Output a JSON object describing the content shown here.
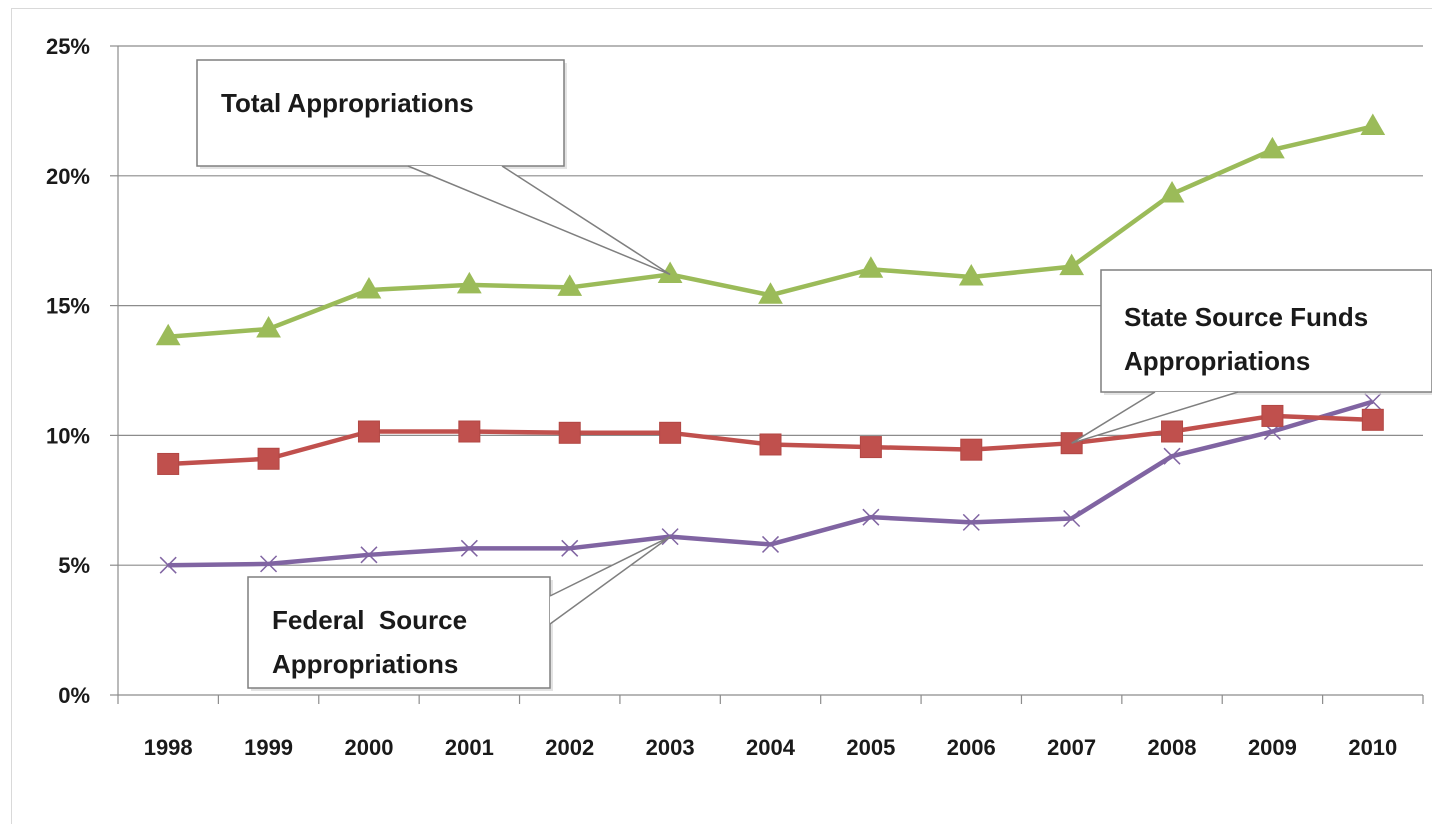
{
  "chart_data": {
    "type": "line",
    "categories": [
      "1998",
      "1999",
      "2000",
      "2001",
      "2002",
      "2003",
      "2004",
      "2005",
      "2006",
      "2007",
      "2008",
      "2009",
      "2010"
    ],
    "y_tick_labels": [
      "0%",
      "5%",
      "10%",
      "15%",
      "20%",
      "25%"
    ],
    "ylim": [
      0,
      25
    ],
    "y_unit": "percent",
    "grid": "horizontal",
    "legend": "none (series identified by callout boxes)",
    "series": [
      {
        "name": "Total Appropriations",
        "marker": "triangle",
        "color": "#9BBB59",
        "values": [
          13.8,
          14.1,
          15.6,
          15.8,
          15.7,
          16.2,
          15.4,
          16.4,
          16.1,
          16.5,
          19.3,
          21.0,
          21.9
        ]
      },
      {
        "name": "State Source Funds Appropriations",
        "marker": "square",
        "color": "#C0504D",
        "values": [
          8.9,
          9.1,
          10.15,
          10.15,
          10.1,
          10.1,
          9.65,
          9.55,
          9.45,
          9.7,
          10.15,
          10.75,
          10.6
        ]
      },
      {
        "name": "Federal Source Appropriations",
        "marker": "x",
        "color": "#8064A2",
        "values": [
          5.0,
          5.05,
          5.4,
          5.65,
          5.65,
          6.1,
          5.8,
          6.85,
          6.65,
          6.8,
          9.2,
          10.15,
          11.3
        ]
      }
    ],
    "annotations": [
      {
        "text_lines": [
          "Total Appropriations"
        ],
        "points_to": {
          "series": "Total Appropriations",
          "category": "2003"
        }
      },
      {
        "text_lines": [
          "State Source Funds",
          "Appropriations"
        ],
        "points_to": {
          "series": "State Source Funds Appropriations",
          "category": "2007"
        }
      },
      {
        "text_lines": [
          "Federal  Source",
          "Appropriations"
        ],
        "points_to": {
          "series": "Federal Source Appropriations",
          "category": "2003"
        }
      }
    ]
  }
}
